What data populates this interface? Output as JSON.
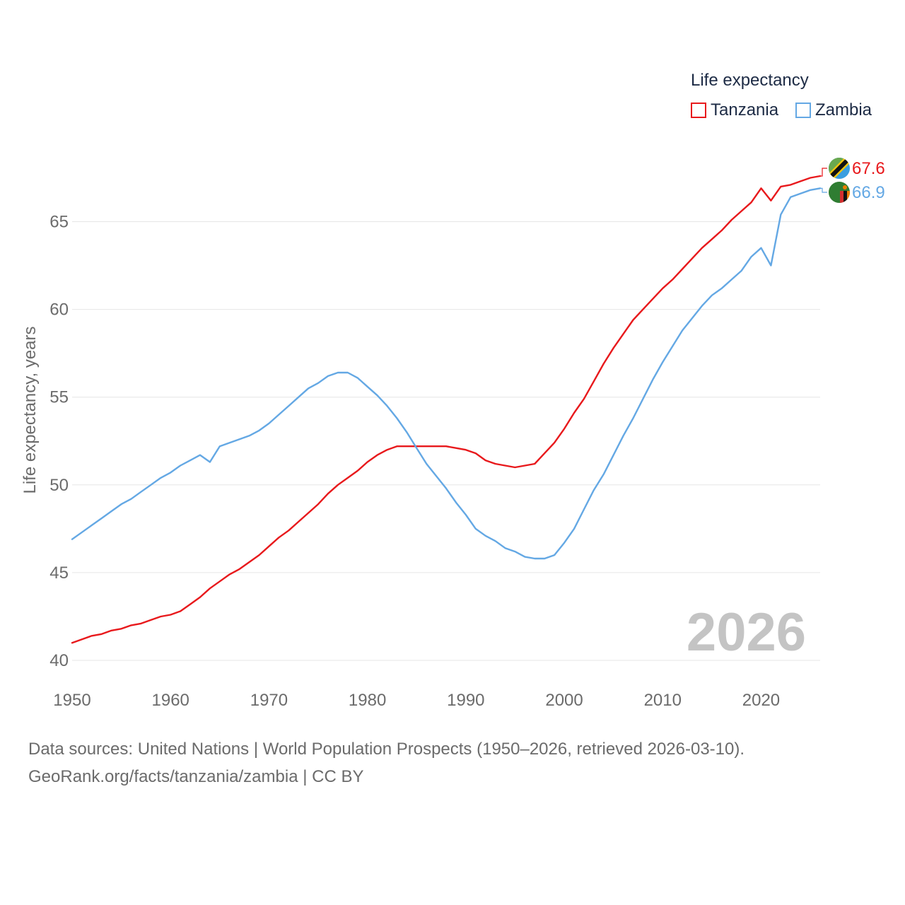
{
  "legend": {
    "title": "Life expectancy",
    "items": [
      {
        "label": "Tanzania",
        "color": "#e8191c"
      },
      {
        "label": "Zambia",
        "color": "#64a8e4"
      }
    ]
  },
  "year_label": "2026",
  "source_line1": "Data sources: United Nations | World Population Prospects (1950–2026, retrieved 2026-03-10).",
  "source_line2": "GeoRank.org/facts/tanzania/zambia | CC BY",
  "chart_data": {
    "type": "line",
    "title": "Life expectancy",
    "xlabel": "",
    "ylabel": "Life expectancy, years",
    "xlim": [
      1950,
      2026
    ],
    "ylim": [
      40,
      68
    ],
    "xticks": [
      1950,
      1960,
      1970,
      1980,
      1990,
      2000,
      2010,
      2020
    ],
    "yticks": [
      40,
      45,
      50,
      55,
      60,
      65
    ],
    "grid": true,
    "legend_position": "top-right",
    "series": [
      {
        "name": "Tanzania",
        "color": "#e8191c",
        "end_label": "67.6",
        "x": [
          1950,
          1951,
          1952,
          1953,
          1954,
          1955,
          1956,
          1957,
          1958,
          1959,
          1960,
          1961,
          1962,
          1963,
          1964,
          1965,
          1966,
          1967,
          1968,
          1969,
          1970,
          1971,
          1972,
          1973,
          1974,
          1975,
          1976,
          1977,
          1978,
          1979,
          1980,
          1981,
          1982,
          1983,
          1984,
          1985,
          1986,
          1987,
          1988,
          1989,
          1990,
          1991,
          1992,
          1993,
          1994,
          1995,
          1996,
          1997,
          1998,
          1999,
          2000,
          2001,
          2002,
          2003,
          2004,
          2005,
          2006,
          2007,
          2008,
          2009,
          2010,
          2011,
          2012,
          2013,
          2014,
          2015,
          2016,
          2017,
          2018,
          2019,
          2020,
          2021,
          2022,
          2023,
          2024,
          2025,
          2026
        ],
        "values": [
          41.0,
          41.2,
          41.4,
          41.5,
          41.7,
          41.8,
          42.0,
          42.1,
          42.3,
          42.5,
          42.6,
          42.8,
          43.2,
          43.6,
          44.1,
          44.5,
          44.9,
          45.2,
          45.6,
          46.0,
          46.5,
          47.0,
          47.4,
          47.9,
          48.4,
          48.9,
          49.5,
          50.0,
          50.4,
          50.8,
          51.3,
          51.7,
          52.0,
          52.2,
          52.2,
          52.2,
          52.2,
          52.2,
          52.2,
          52.1,
          52.0,
          51.8,
          51.4,
          51.2,
          51.1,
          51.0,
          51.1,
          51.2,
          51.8,
          52.4,
          53.2,
          54.1,
          54.9,
          55.9,
          56.9,
          57.8,
          58.6,
          59.4,
          60.0,
          60.6,
          61.2,
          61.7,
          62.3,
          62.9,
          63.5,
          64.0,
          64.5,
          65.1,
          65.6,
          66.1,
          66.9,
          66.2,
          67.0,
          67.1,
          67.3,
          67.5,
          67.6
        ]
      },
      {
        "name": "Zambia",
        "color": "#64a8e4",
        "end_label": "66.9",
        "x": [
          1950,
          1951,
          1952,
          1953,
          1954,
          1955,
          1956,
          1957,
          1958,
          1959,
          1960,
          1961,
          1962,
          1963,
          1964,
          1965,
          1966,
          1967,
          1968,
          1969,
          1970,
          1971,
          1972,
          1973,
          1974,
          1975,
          1976,
          1977,
          1978,
          1979,
          1980,
          1981,
          1982,
          1983,
          1984,
          1985,
          1986,
          1987,
          1988,
          1989,
          1990,
          1991,
          1992,
          1993,
          1994,
          1995,
          1996,
          1997,
          1998,
          1999,
          2000,
          2001,
          2002,
          2003,
          2004,
          2005,
          2006,
          2007,
          2008,
          2009,
          2010,
          2011,
          2012,
          2013,
          2014,
          2015,
          2016,
          2017,
          2018,
          2019,
          2020,
          2021,
          2022,
          2023,
          2024,
          2025,
          2026
        ],
        "values": [
          46.9,
          47.3,
          47.7,
          48.1,
          48.5,
          48.9,
          49.2,
          49.6,
          50.0,
          50.4,
          50.7,
          51.1,
          51.4,
          51.7,
          51.3,
          52.2,
          52.4,
          52.6,
          52.8,
          53.1,
          53.5,
          54.0,
          54.5,
          55.0,
          55.5,
          55.8,
          56.2,
          56.4,
          56.4,
          56.1,
          55.6,
          55.1,
          54.5,
          53.8,
          53.0,
          52.1,
          51.2,
          50.5,
          49.8,
          49.0,
          48.3,
          47.5,
          47.1,
          46.8,
          46.4,
          46.2,
          45.9,
          45.8,
          45.8,
          46.0,
          46.7,
          47.5,
          48.6,
          49.7,
          50.6,
          51.7,
          52.8,
          53.8,
          54.9,
          56.0,
          57.0,
          57.9,
          58.8,
          59.5,
          60.2,
          60.8,
          61.2,
          61.7,
          62.2,
          63.0,
          63.5,
          62.5,
          65.4,
          66.4,
          66.6,
          66.8,
          66.9
        ]
      }
    ]
  }
}
